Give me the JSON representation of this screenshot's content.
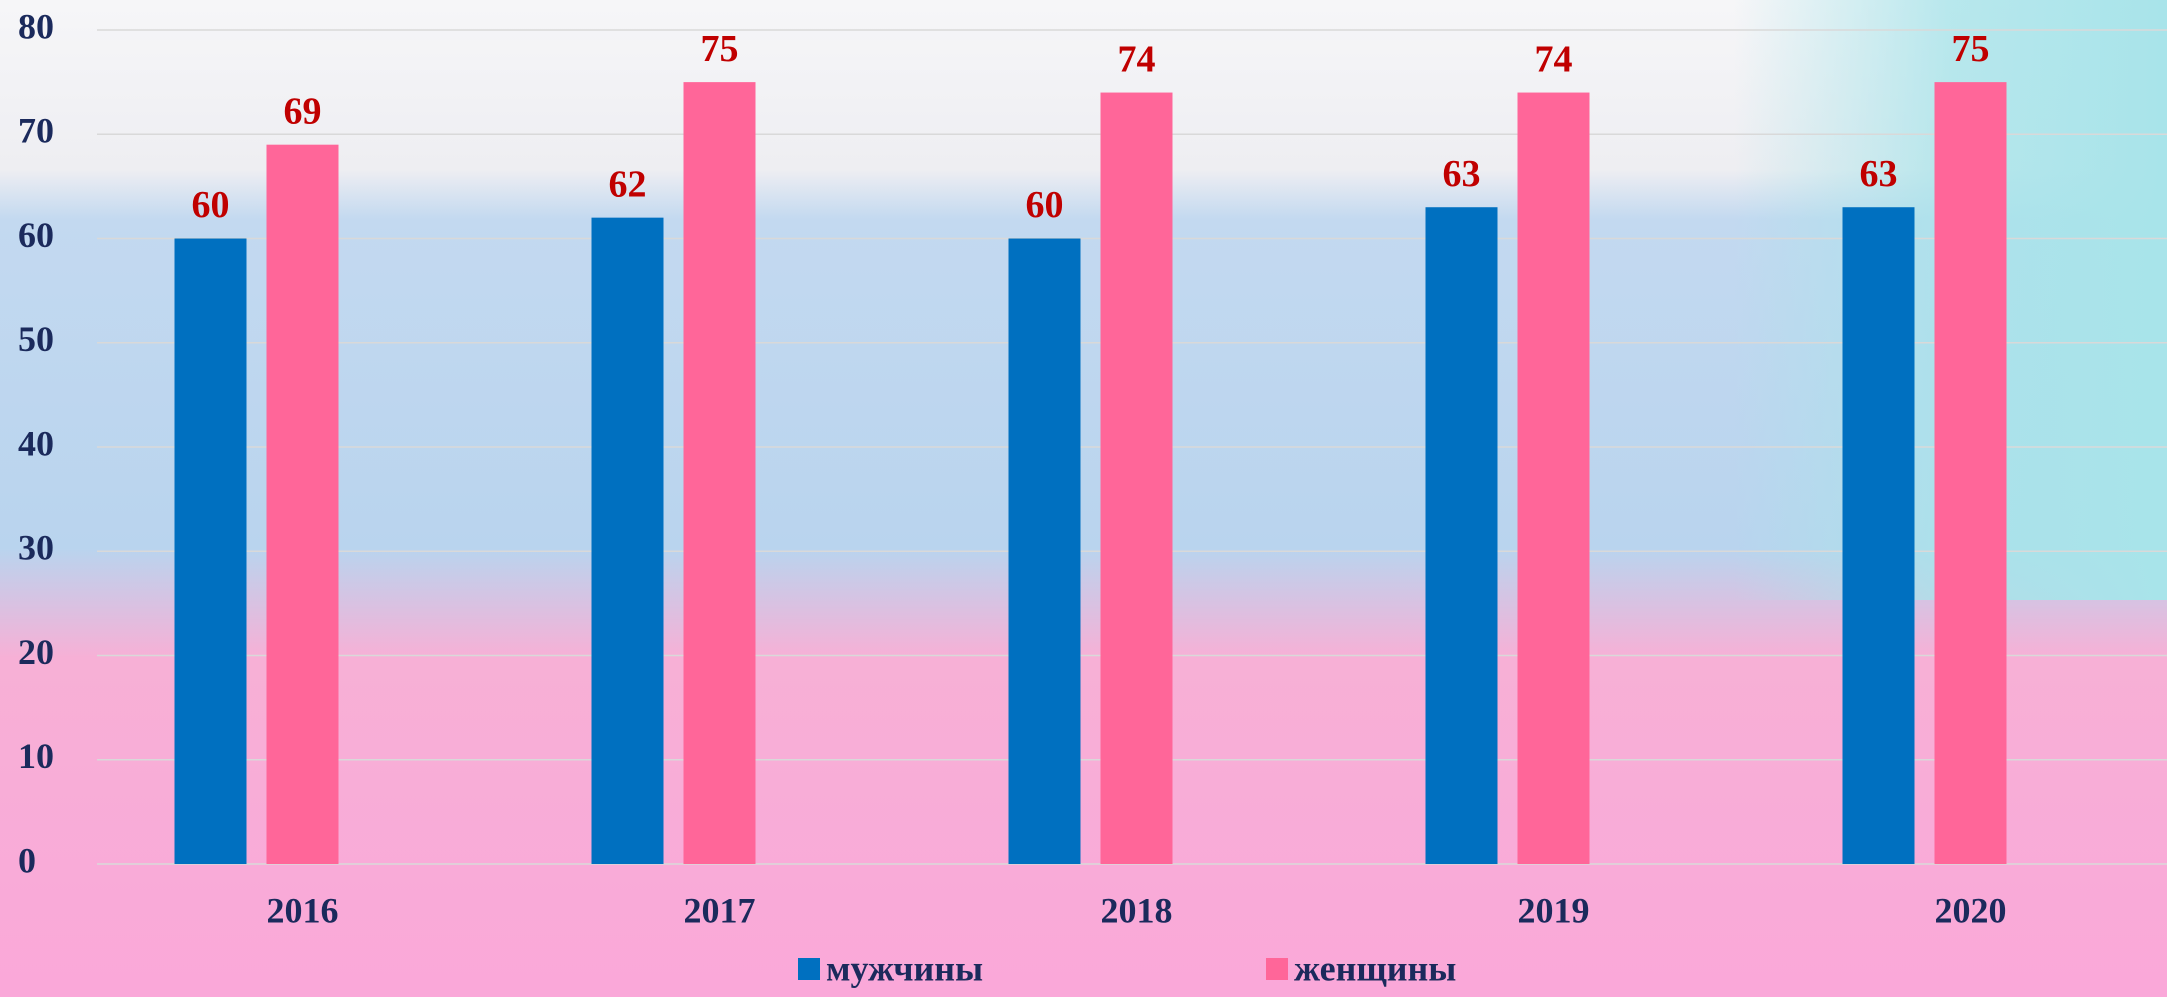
{
  "chart_data": {
    "type": "bar",
    "categories": [
      "2016",
      "2017",
      "2018",
      "2019",
      "2020"
    ],
    "series": [
      {
        "name": "мужчины",
        "color": "#0070c0",
        "values": [
          60,
          62,
          60,
          63,
          63
        ]
      },
      {
        "name": "женщины",
        "color": "#ff6699",
        "values": [
          69,
          75,
          74,
          74,
          75
        ]
      }
    ],
    "ylim": [
      0,
      80
    ],
    "yticks": [
      0,
      10,
      20,
      30,
      40,
      50,
      60,
      70,
      80
    ],
    "grid": true
  }
}
